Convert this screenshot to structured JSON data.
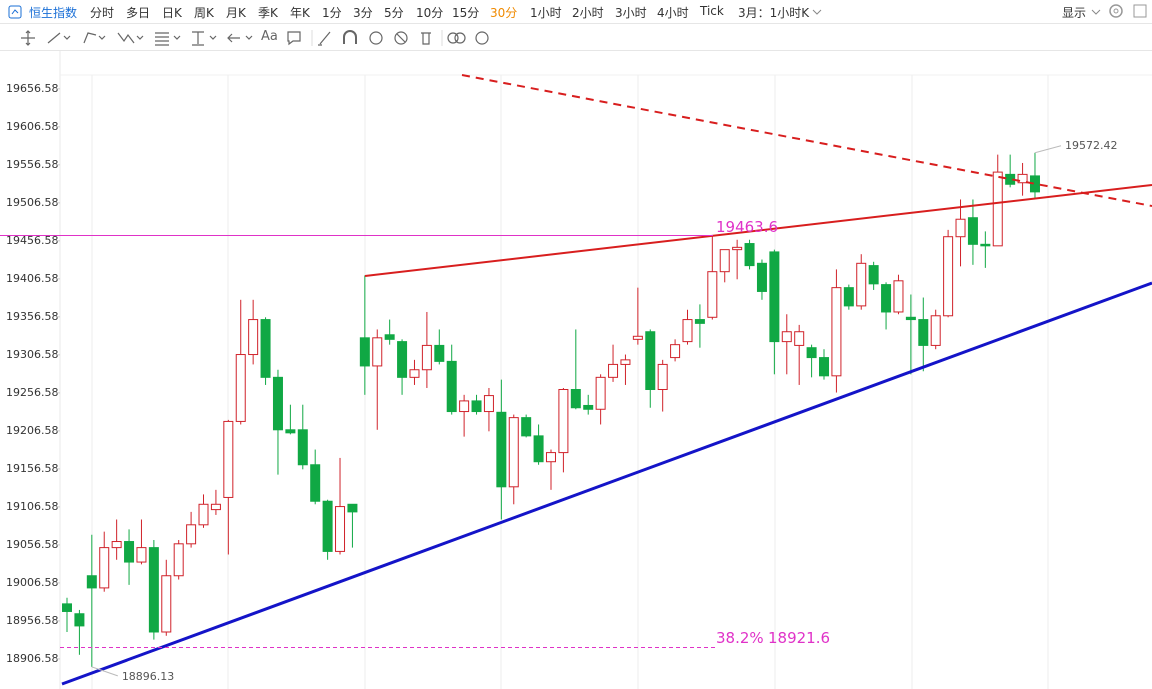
{
  "toolbar": {
    "index_name": "恒生指数",
    "periods": [
      "分时",
      "多日",
      "日K",
      "周K",
      "月K",
      "季K",
      "年K",
      "1分",
      "3分",
      "5分",
      "10分",
      "15分",
      "30分",
      "1小时",
      "2小时",
      "3小时",
      "4小时",
      "Tick"
    ],
    "range_label": "3月：1小时K",
    "display": "显示",
    "text_tool": "Aa"
  },
  "chart_data": {
    "type": "candlestick",
    "up_color": "#d0222a",
    "down_color": "#10a844",
    "ylim": [
      18867,
      19705
    ],
    "yticks": [
      18906.58,
      18956.58,
      19006.58,
      19056.58,
      19106.58,
      19156.58,
      19206.58,
      19256.58,
      19306.58,
      19356.58,
      19406.58,
      19456.58,
      19506.58,
      19556.58,
      19606.58,
      19656.58
    ],
    "open": [
      18979,
      18966,
      19016,
      19000,
      19053,
      19061,
      19034,
      19053,
      18942,
      19016,
      19058,
      19083,
      19103,
      19119,
      19219,
      19307,
      19353,
      19277,
      19208,
      19208,
      19162,
      19114,
      19048,
      19110,
      19329,
      19292,
      19333,
      19324,
      19277,
      19287,
      19319,
      19298,
      19232,
      19246,
      19232,
      19231,
      19133,
      19224,
      19200,
      19166,
      19178,
      19261,
      19240,
      19235,
      19277,
      19294,
      19327,
      19337,
      19261,
      19303,
      19324,
      19353,
      19356,
      19416,
      19445,
      19453,
      19427,
      19442,
      19324,
      19319,
      19316,
      19303,
      19279,
      19395,
      19371,
      19424,
      19399,
      19363,
      19356,
      19353,
      19319,
      19358,
      19462,
      19487,
      19452,
      19450,
      19544,
      19533,
      19542
    ],
    "high": [
      18987,
      18971,
      19070,
      19074,
      19090,
      19077,
      19090,
      19063,
      19037,
      19063,
      19100,
      19123,
      19129,
      19221,
      19379,
      19379,
      19356,
      19287,
      19241,
      19241,
      19182,
      19116,
      19171,
      19110,
      19411,
      19340,
      19353,
      19327,
      19300,
      19363,
      19340,
      19320,
      19254,
      19254,
      19263,
      19274,
      19228,
      19228,
      19215,
      19182,
      19263,
      19340,
      19254,
      19281,
      19320,
      19307,
      19395,
      19340,
      19300,
      19327,
      19366,
      19373,
      19463.6,
      19445,
      19458,
      19458,
      19432,
      19445,
      19360,
      19346,
      19320,
      19314,
      19419,
      19399,
      19439,
      19429,
      19402,
      19412,
      19386,
      19382,
      19366,
      19471,
      19511,
      19511,
      19469,
      19570,
      19570,
      19559,
      19572.42
    ],
    "low": [
      18942,
      18912,
      18896.13,
      18995,
      19037,
      19004,
      19031,
      18932,
      18937,
      19011,
      19053,
      19079,
      19096,
      19044,
      19215,
      19294,
      19267,
      19149,
      19202,
      19156,
      19110,
      19037,
      19044,
      19053,
      19254,
      19208,
      19320,
      19254,
      19267,
      19263,
      19294,
      19228,
      19199,
      19228,
      19206,
      19090,
      19110,
      19198,
      19162,
      19129,
      19152,
      19235,
      19228,
      19215,
      19271,
      19267,
      19320,
      19237,
      19232,
      19298,
      19320,
      19316,
      19353,
      19402,
      19406,
      19419,
      19379,
      19281,
      19281,
      19267,
      19277,
      19274,
      19257,
      19366,
      19366,
      19392,
      19340,
      19360,
      19281,
      19285,
      19314,
      19356,
      19423,
      19425,
      19421,
      19450,
      19527,
      19516,
      19513
    ],
    "close": [
      18969,
      18950,
      19000,
      19053,
      19061,
      19034,
      19053,
      18942,
      19016,
      19058,
      19083,
      19110,
      19110,
      19219,
      19307,
      19353,
      19277,
      19208,
      19204,
      19162,
      19114,
      19048,
      19107,
      19100,
      19292,
      19329,
      19327,
      19277,
      19287,
      19319,
      19298,
      19232,
      19246,
      19232,
      19253,
      19133,
      19224,
      19200,
      19166,
      19178,
      19261,
      19237,
      19235,
      19277,
      19294,
      19300,
      19331,
      19261,
      19294,
      19320,
      19353,
      19348,
      19416,
      19445,
      19448,
      19424,
      19390,
      19324,
      19337,
      19337,
      19303,
      19279,
      19395,
      19371,
      19427,
      19400,
      19363,
      19404,
      19353,
      19319,
      19358,
      19462,
      19485,
      19452,
      19450,
      19547,
      19531,
      19544,
      19521
    ],
    "price_line": {
      "value": 19463.6,
      "color": "#e032c8"
    },
    "fib_line": {
      "label": "38.2%",
      "value": 18921.6,
      "color": "#e032c8"
    }
  }
}
